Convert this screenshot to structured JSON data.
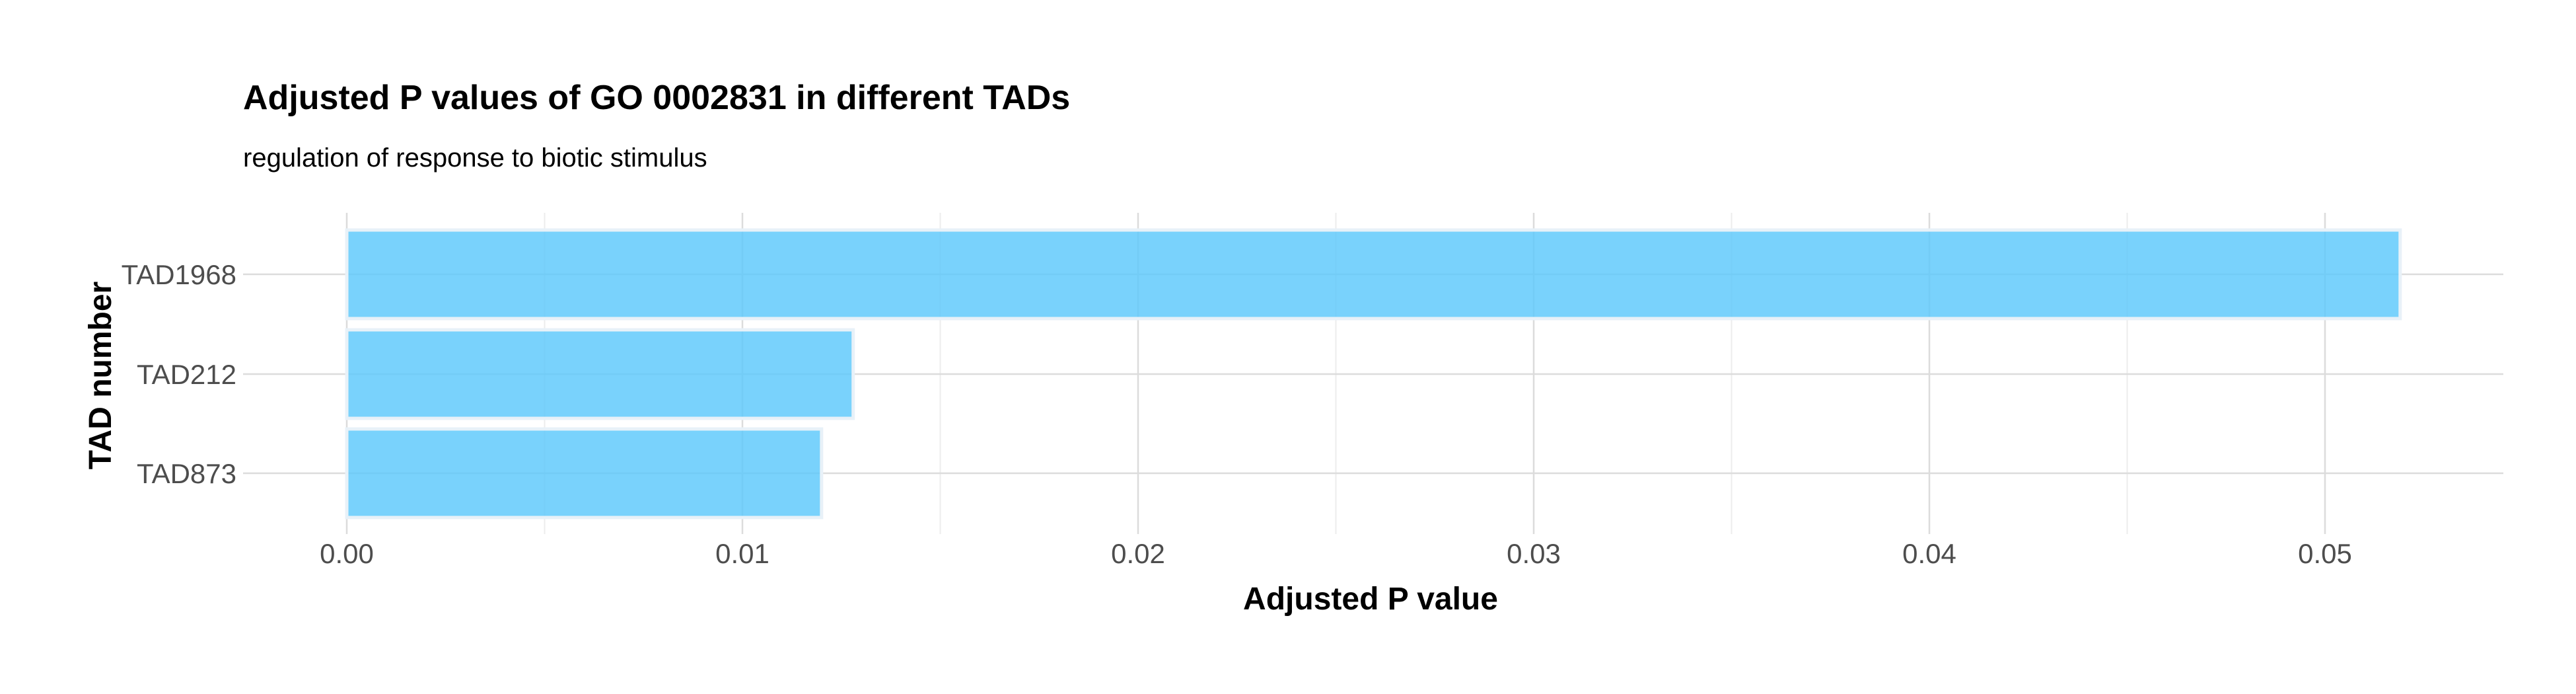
{
  "chart_data": {
    "type": "bar",
    "orientation": "horizontal",
    "title": "Adjusted P values of GO 0002831 in different TADs",
    "subtitle": "regulation of response to biotic stimulus",
    "xlabel": "Adjusted P value",
    "ylabel": "TAD number",
    "categories": [
      "TAD1968",
      "TAD212",
      "TAD873"
    ],
    "values": [
      0.0519,
      0.0128,
      0.012
    ],
    "xlim": [
      0,
      0.0545
    ],
    "x_ticks": [
      0,
      0.01,
      0.02,
      0.03,
      0.04,
      0.05
    ],
    "x_tick_labels": [
      "0.00",
      "0.01",
      "0.02",
      "0.03",
      "0.04",
      "0.05"
    ],
    "bar_color": "#5bc8fb",
    "grid": true,
    "legend": "none"
  }
}
